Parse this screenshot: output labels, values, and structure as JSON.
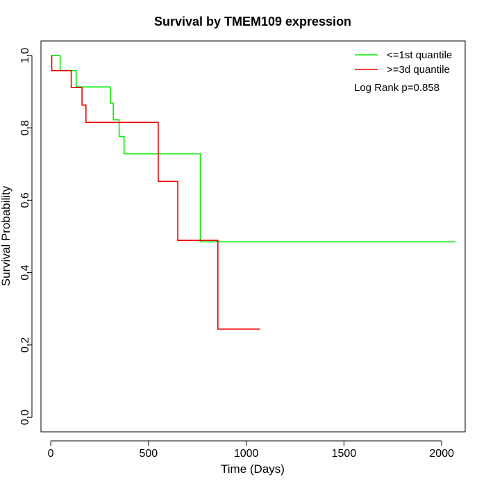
{
  "chart_data": {
    "type": "line",
    "title": "Survival by TMEM109 expression",
    "xlabel": "Time (Days)",
    "ylabel": "Survival Probability",
    "xlim": [
      -50,
      2120
    ],
    "ylim": [
      -0.04,
      1.04
    ],
    "x_ticks": [
      0,
      500,
      1000,
      1500,
      2000
    ],
    "x_tick_labels": [
      "0",
      "500",
      "1000",
      "1500",
      "2000"
    ],
    "y_ticks": [
      0.0,
      0.2,
      0.4,
      0.6,
      0.8,
      1.0
    ],
    "y_tick_labels": [
      "0.0",
      "0.2",
      "0.4",
      "0.6",
      "0.8",
      "1.0"
    ],
    "grid": false,
    "legend_position": "top-right",
    "annotation": "Log Rank p=0.858",
    "series": [
      {
        "name": "<=1st quantile",
        "color": "#00ee00",
        "x": [
          0,
          48,
          48,
          130,
          130,
          305,
          305,
          320,
          320,
          350,
          350,
          375,
          375,
          765,
          765,
          2070
        ],
        "y": [
          1.0,
          1.0,
          0.958,
          0.958,
          0.913,
          0.913,
          0.868,
          0.868,
          0.822,
          0.822,
          0.776,
          0.776,
          0.728,
          0.728,
          0.485,
          0.485
        ]
      },
      {
        "name": ">=3d quantile",
        "color": "#ee0000",
        "x": [
          5,
          5,
          105,
          105,
          160,
          160,
          180,
          180,
          550,
          550,
          650,
          650,
          855,
          855,
          1070
        ],
        "y": [
          1.0,
          0.958,
          0.958,
          0.911,
          0.911,
          0.863,
          0.863,
          0.815,
          0.815,
          0.652,
          0.652,
          0.489,
          0.489,
          0.244,
          0.244
        ]
      }
    ]
  }
}
